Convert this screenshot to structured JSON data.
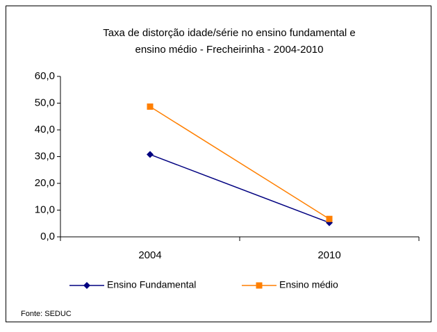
{
  "chart_data": {
    "type": "line",
    "title": [
      "Taxa de distorção idade/série no ensino fundamental e",
      "ensino médio - Frecheirinha -  2004-2010"
    ],
    "categories": [
      "2004",
      "2010"
    ],
    "series": [
      {
        "name": "Ensino Fundamental",
        "color": "#000080",
        "marker": "diamond",
        "values": [
          30.8,
          5.3
        ]
      },
      {
        "name": "Ensino médio",
        "color": "#ff7f00",
        "marker": "square",
        "values": [
          48.7,
          6.7
        ]
      }
    ],
    "ylim": [
      0,
      60
    ],
    "yticks": [
      {
        "value": 0,
        "label": "0,0"
      },
      {
        "value": 10,
        "label": "10,0"
      },
      {
        "value": 20,
        "label": "20,0"
      },
      {
        "value": 30,
        "label": "30,0"
      },
      {
        "value": 40,
        "label": "40,0"
      },
      {
        "value": 50,
        "label": "50,0"
      },
      {
        "value": 60,
        "label": "60,0"
      }
    ],
    "legend": "bottom",
    "source": "Fonte: SEDUC"
  }
}
